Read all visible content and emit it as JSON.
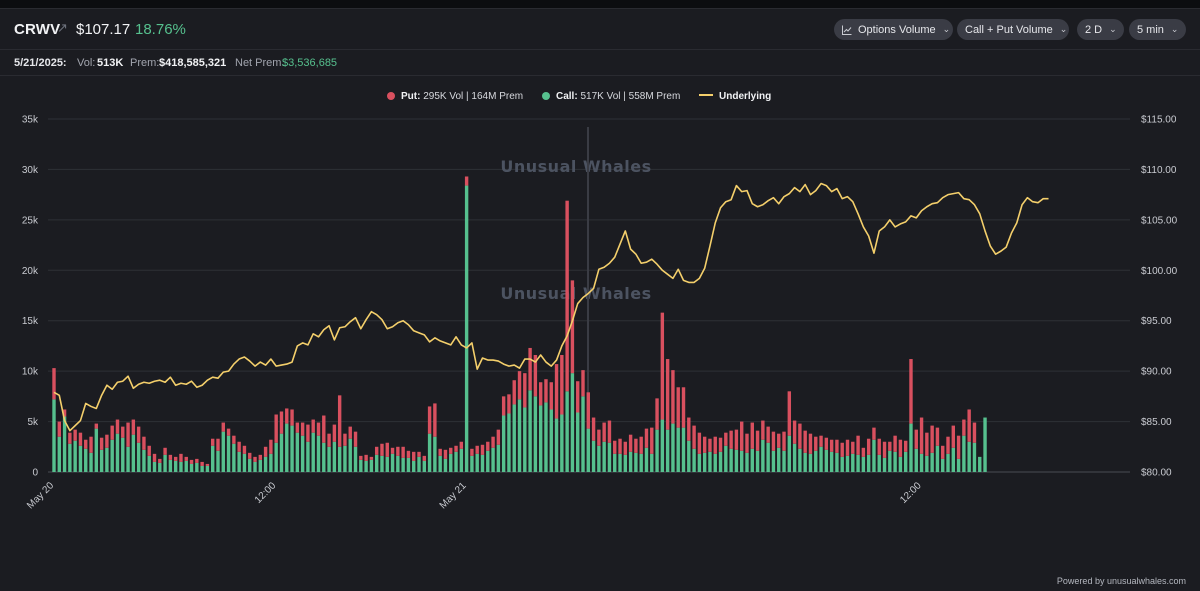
{
  "header": {
    "ticker": "CRWV",
    "ext_icon": "↗",
    "price": "$107.17",
    "change_pct": "18.76%",
    "buttons": {
      "options_volume": "Options Volume",
      "call_put": "Call + Put Volume",
      "range": "2 D",
      "interval": "5 min"
    }
  },
  "stats": {
    "date": "5/21/2025:",
    "vol_label": "Vol:",
    "vol_value": "513K",
    "prem_label": "Prem:",
    "prem_value": "$418,585,321",
    "net_prem_label": "Net Prem:",
    "net_prem_value": "$3,536,685"
  },
  "legend": {
    "put_label": "Put:",
    "put_text": "295K Vol | 164M Prem",
    "call_label": "Call:",
    "call_text": "517K Vol | 558M Prem",
    "underlying_label": "Underlying"
  },
  "watermark": "Unusual Whales",
  "footer": "Powered by unusualwhales.com",
  "colors": {
    "put": "#d9505f",
    "call": "#56c08e",
    "underlying": "#f4cf6b",
    "background": "#1b1c21",
    "grid": "#2e3036"
  },
  "icons": [
    "external-link-icon",
    "chart-icon",
    "chevron-down-icon"
  ],
  "chart_data": {
    "type": "bar",
    "stacked": true,
    "grid": true,
    "legend_position": "top-center",
    "y_left": {
      "ylim": [
        0,
        35000
      ],
      "ticks": [
        0,
        5000,
        10000,
        15000,
        20000,
        25000,
        30000,
        35000
      ],
      "tick_labels": [
        "0",
        "5k",
        "10k",
        "15k",
        "20k",
        "25k",
        "30k",
        "35k"
      ]
    },
    "y_right": {
      "ylim": [
        80,
        115
      ],
      "ticks": [
        80,
        85,
        90,
        95,
        100,
        105,
        110,
        115
      ],
      "tick_labels": [
        "$80.00",
        "$85.00",
        "$90.00",
        "$95.00",
        "$100.00",
        "$105.00",
        "$110.00",
        "$115.00"
      ]
    },
    "x_tick_labels": [
      {
        "label": "May 20",
        "bar_index": 0
      },
      {
        "label": "12:00",
        "bar_index": 42
      },
      {
        "label": "May 21",
        "bar_index": 78
      },
      {
        "label": "12:00",
        "bar_index": 164
      }
    ],
    "series": [
      {
        "name": "Call",
        "values": [
          7200,
          3500,
          5500,
          2800,
          3100,
          2600,
          2300,
          1900,
          4300,
          2200,
          2400,
          3200,
          3800,
          3400,
          2500,
          3700,
          2900,
          2200,
          1600,
          1000,
          900,
          1700,
          1200,
          1100,
          1000,
          1100,
          800,
          900,
          600,
          600,
          2600,
          2100,
          4000,
          3600,
          2800,
          2000,
          1800,
          1300,
          1000,
          1200,
          1500,
          1800,
          2900,
          3800,
          4800,
          4600,
          3900,
          3600,
          3000,
          3900,
          3600,
          2900,
          2500,
          3000,
          2500,
          2600,
          3300,
          2500,
          1200,
          1100,
          1200,
          1700,
          1600,
          1500,
          1800,
          1600,
          1400,
          1400,
          1100,
          1500,
          1100,
          3800,
          3500,
          1600,
          1300,
          1800,
          2000,
          2300,
          28400,
          1600,
          1800,
          1700,
          2100,
          2400,
          2700,
          5600,
          5800,
          6700,
          7200,
          6400,
          8100,
          7500,
          6600,
          6900,
          6200,
          5300,
          5700,
          8000,
          9800,
          5900,
          7500,
          4300,
          3100,
          2600,
          3000,
          2900,
          1800,
          1800,
          1700,
          2000,
          1900,
          1800,
          2400,
          1800,
          4200,
          5200,
          4200,
          4800,
          4400,
          4400,
          3100,
          2300,
          1800,
          1900,
          2000,
          1800,
          2000,
          2600,
          2300,
          2200,
          2100,
          1900,
          2300,
          2100,
          3200,
          2900,
          2100,
          2400,
          2100,
          3600,
          2800,
          2300,
          1900,
          1800,
          2100,
          2500,
          2200,
          2000,
          1900,
          1500,
          1600,
          1800,
          1700,
          1500,
          1700,
          3200,
          1700,
          1400,
          2100,
          2000,
          1500,
          2000,
          4800,
          2300,
          1800,
          1600,
          1900,
          2600,
          1300,
          1800,
          2400,
          1300,
          3600,
          3000,
          2900,
          1500,
          5400
        ]
      },
      {
        "name": "Put",
        "values": [
          3100,
          1500,
          700,
          1100,
          1100,
          1300,
          900,
          1600,
          500,
          1200,
          1300,
          1400,
          1400,
          1100,
          2400,
          1500,
          1600,
          1300,
          1000,
          800,
          400,
          700,
          500,
          400,
          800,
          400,
          400,
          400,
          400,
          200,
          700,
          1200,
          900,
          700,
          800,
          1000,
          800,
          600,
          500,
          500,
          1000,
          1400,
          2800,
          2200,
          1500,
          1600,
          1000,
          1300,
          1700,
          1300,
          1300,
          2700,
          1300,
          1700,
          5100,
          1200,
          1200,
          1500,
          400,
          600,
          300,
          800,
          1200,
          1400,
          600,
          900,
          1100,
          700,
          900,
          500,
          500,
          2700,
          3300,
          700,
          900,
          600,
          600,
          700,
          900,
          700,
          800,
          1000,
          900,
          1100,
          1500,
          1900,
          1900,
          2400,
          2800,
          3400,
          4200,
          4100,
          2300,
          2300,
          2700,
          5400,
          5900,
          18900,
          9200,
          3100,
          2600,
          3600,
          2300,
          1600,
          1900,
          2200,
          1300,
          1500,
          1300,
          1700,
          1400,
          1700,
          1900,
          2600,
          3100,
          10600,
          7000,
          5300,
          4000,
          4000,
          2300,
          2300,
          2100,
          1600,
          1300,
          1700,
          1400,
          1300,
          1800,
          2000,
          2900,
          1900,
          2600,
          2000,
          1900,
          1600,
          1900,
          1400,
          1900,
          4400,
          2300,
          2500,
          2200,
          2000,
          1400,
          1100,
          1200,
          1200,
          1300,
          1400,
          1600,
          1200,
          1900,
          900,
          1600,
          1200,
          1600,
          1600,
          900,
          1600,
          1700,
          1100,
          6400,
          1900,
          3600,
          2300,
          2700,
          1800,
          1300,
          1700,
          2200,
          2300,
          1600,
          3200,
          2000
        ]
      },
      {
        "name": "Underlying",
        "axis": "right",
        "values": [
          87.9,
          87.6,
          85.1,
          84.1,
          84.6,
          85.1,
          86.8,
          86.5,
          86.3,
          87.6,
          88.6,
          88.2,
          88.9,
          89.0,
          89.5,
          88.3,
          88.7,
          88.9,
          88.8,
          89.0,
          89.1,
          88.9,
          89.4,
          88.6,
          88.8,
          88.7,
          89.0,
          88.4,
          88.6,
          89.1,
          89.4,
          89.3,
          89.9,
          90.0,
          90.7,
          91.2,
          91.4,
          91.0,
          90.5,
          90.9,
          90.6,
          91.2,
          90.5,
          90.6,
          90.7,
          90.9,
          92.5,
          92.8,
          92.6,
          93.7,
          93.4,
          94.1,
          94.5,
          93.1,
          94.3,
          94.4,
          94.9,
          95.3,
          94.2,
          95.1,
          95.9,
          95.6,
          95.1,
          94.2,
          94.4,
          94.8,
          95.0,
          94.6,
          94.0,
          93.8,
          93.6,
          92.9,
          93.3,
          93.0,
          92.8,
          92.6,
          93.4,
          92.6,
          92.3,
          92.8,
          90.2,
          91.3,
          91.1,
          91.1,
          91.0,
          90.7,
          90.5,
          90.6,
          90.3,
          91.2,
          91.2,
          90.9,
          91.6,
          90.9,
          90.5,
          91.1,
          92.5,
          93.5,
          95.0,
          96.7,
          97.3,
          97.7,
          98.2,
          100.1,
          100.3,
          100.7,
          101.3,
          102.6,
          103.9,
          102.1,
          101.6,
          100.7,
          100.8,
          101.1,
          100.6,
          100.0,
          99.6,
          99.2,
          100.1,
          99.0,
          98.8,
          98.8,
          99.2,
          100.2,
          102.4,
          104.7,
          106.2,
          106.8,
          107.0,
          108.4,
          107.8,
          107.9,
          106.6,
          106.3,
          106.5,
          106.9,
          107.2,
          106.6,
          107.3,
          107.6,
          108.2,
          107.8,
          108.5,
          107.5,
          107.9,
          108.6,
          108.4,
          107.8,
          108.1,
          107.1,
          107.3,
          106.8,
          105.6,
          104.3,
          103.4,
          101.7,
          103.9,
          104.3,
          105.0,
          104.3,
          104.6,
          104.8,
          105.4,
          105.2,
          105.9,
          106.3,
          106.6,
          106.7,
          107.2,
          107.5,
          107.6,
          107.7,
          107.1,
          107.0,
          106.5,
          105.6,
          103.9,
          102.4,
          101.6,
          101.9,
          102.3,
          103.7,
          104.7,
          106.5,
          107.2,
          106.8,
          106.7,
          107.1,
          107.1
        ]
      }
    ]
  }
}
